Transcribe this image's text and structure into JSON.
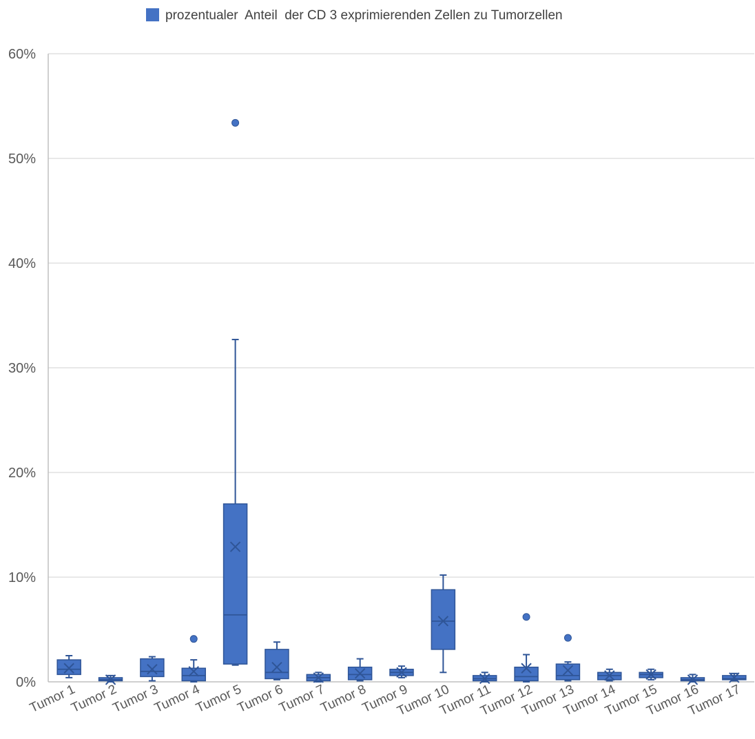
{
  "chart_data": {
    "type": "box",
    "legend": {
      "label": "prozentualer  Anteil  der CD 3 exprimierenden Zellen zu Tumorzellen",
      "position": "top"
    },
    "colors": {
      "box_fill": "#4472c4",
      "box_stroke": "#2f5597",
      "grid": "#d9d9d9",
      "axis": "#bfbfbf"
    },
    "y_axis": {
      "min": 0,
      "max": 0.6,
      "ticks": [
        0,
        0.1,
        0.2,
        0.3,
        0.4,
        0.5,
        0.6
      ],
      "tick_labels": [
        "0%",
        "10%",
        "20%",
        "30%",
        "40%",
        "50%",
        "60%"
      ],
      "grid": true
    },
    "categories": [
      "Tumor 1",
      "Tumor 2",
      "Tumor 3",
      "Tumor 4",
      "Tumor 5",
      "Tumor 6",
      "Tumor 7",
      "Tumor 8",
      "Tumor 9",
      "Tumor 10",
      "Tumor 11",
      "Tumor 12",
      "Tumor 13",
      "Tumor 14",
      "Tumor 15",
      "Tumor 16",
      "Tumor 17"
    ],
    "boxes": [
      {
        "min": 0.004,
        "q1": 0.007,
        "median": 0.012,
        "q3": 0.021,
        "max": 0.025,
        "mean": 0.013,
        "outliers": []
      },
      {
        "min": 0.0,
        "q1": 0.001,
        "median": 0.002,
        "q3": 0.004,
        "max": 0.006,
        "mean": 0.002,
        "outliers": []
      },
      {
        "min": 0.001,
        "q1": 0.005,
        "median": 0.01,
        "q3": 0.022,
        "max": 0.024,
        "mean": 0.012,
        "outliers": []
      },
      {
        "min": 0.0,
        "q1": 0.001,
        "median": 0.006,
        "q3": 0.013,
        "max": 0.021,
        "mean": 0.01,
        "outliers": [
          0.041
        ]
      },
      {
        "min": 0.016,
        "q1": 0.017,
        "median": 0.064,
        "q3": 0.17,
        "max": 0.327,
        "mean": 0.129,
        "outliers": [
          0.534
        ]
      },
      {
        "min": 0.002,
        "q1": 0.003,
        "median": 0.009,
        "q3": 0.031,
        "max": 0.038,
        "mean": 0.014,
        "outliers": []
      },
      {
        "min": 0.0,
        "q1": 0.001,
        "median": 0.004,
        "q3": 0.007,
        "max": 0.009,
        "mean": 0.004,
        "outliers": []
      },
      {
        "min": 0.001,
        "q1": 0.002,
        "median": 0.007,
        "q3": 0.014,
        "max": 0.022,
        "mean": 0.008,
        "outliers": []
      },
      {
        "min": 0.004,
        "q1": 0.006,
        "median": 0.009,
        "q3": 0.012,
        "max": 0.015,
        "mean": 0.009,
        "outliers": []
      },
      {
        "min": 0.009,
        "q1": 0.031,
        "median": 0.058,
        "q3": 0.088,
        "max": 0.102,
        "mean": 0.058,
        "outliers": []
      },
      {
        "min": 0.0,
        "q1": 0.001,
        "median": 0.003,
        "q3": 0.006,
        "max": 0.009,
        "mean": 0.003,
        "outliers": []
      },
      {
        "min": 0.0,
        "q1": 0.001,
        "median": 0.005,
        "q3": 0.014,
        "max": 0.026,
        "mean": 0.013,
        "outliers": [
          0.062
        ]
      },
      {
        "min": 0.001,
        "q1": 0.002,
        "median": 0.006,
        "q3": 0.017,
        "max": 0.019,
        "mean": 0.011,
        "outliers": [
          0.042
        ]
      },
      {
        "min": 0.001,
        "q1": 0.002,
        "median": 0.006,
        "q3": 0.009,
        "max": 0.012,
        "mean": 0.006,
        "outliers": []
      },
      {
        "min": 0.002,
        "q1": 0.004,
        "median": 0.007,
        "q3": 0.009,
        "max": 0.012,
        "mean": 0.007,
        "outliers": []
      },
      {
        "min": 0.0,
        "q1": 0.001,
        "median": 0.002,
        "q3": 0.004,
        "max": 0.007,
        "mean": 0.002,
        "outliers": []
      },
      {
        "min": 0.001,
        "q1": 0.002,
        "median": 0.003,
        "q3": 0.006,
        "max": 0.008,
        "mean": 0.004,
        "outliers": []
      }
    ]
  }
}
